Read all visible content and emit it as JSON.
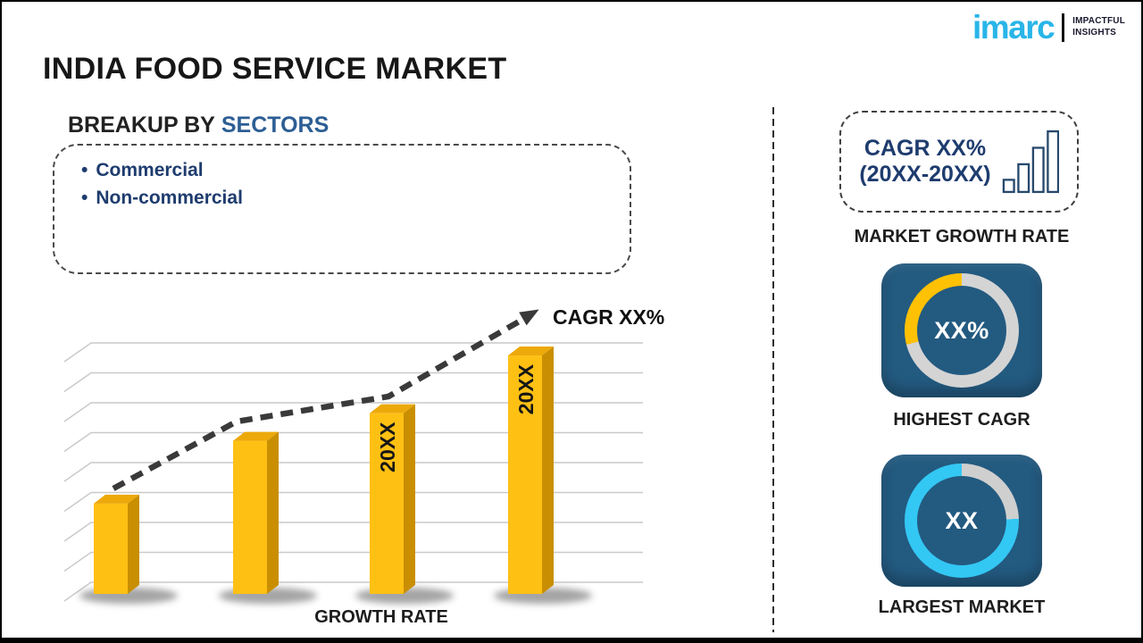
{
  "brand": {
    "logo_text": "imarc",
    "tagline": [
      "IMPACTFUL",
      "INSIGHTS"
    ],
    "logo_color": "#29b5e8"
  },
  "header": {
    "title": "INDIA FOOD SERVICE MARKET"
  },
  "breakup": {
    "heading_prefix": "BREAKUP BY",
    "heading_highlight": "SECTORS",
    "highlight_color": "#2d5e94",
    "items": [
      "Commercial",
      "Non-commercial"
    ]
  },
  "chart_data": {
    "type": "bar",
    "title": "",
    "xlabel": "GROWTH RATE",
    "ylabel": "",
    "categories": [
      "",
      "",
      "20XX",
      "20XX"
    ],
    "values": [
      0.36,
      0.61,
      0.72,
      0.95
    ],
    "value_scale": "relative bar height 0-1 (placeholder chart, no numeric axis shown)",
    "trend_label": "CAGR XX%",
    "trend_line": true,
    "grid": true,
    "gridline_count": 9,
    "bar_color": "#FFC014",
    "bar_side_color": "#C98F00",
    "bar_top_color": "#EDA90A",
    "trend_color": "#3a3a3a"
  },
  "right_panel": {
    "growth_card": {
      "line1": "CAGR XX%",
      "line2": "(20XX-20XX)",
      "caption": "MARKET GROWTH RATE",
      "icon_color": "#27496d"
    },
    "highest_cagr": {
      "value": "XX%",
      "caption": "HIGHEST CAGR",
      "ring_main": "#FFC104",
      "ring_rest": "#D4D4D4",
      "fraction": 0.29
    },
    "largest_market": {
      "value": "XX",
      "caption": "LARGEST MARKET",
      "ring_main": "#33C7F4",
      "ring_rest": "#CFCFCF",
      "fraction": 0.755
    }
  },
  "tile_color": "#235a80"
}
